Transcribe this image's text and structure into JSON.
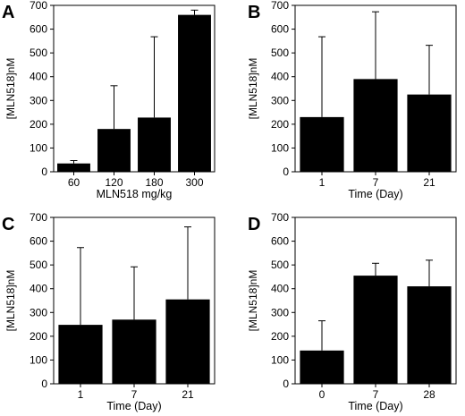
{
  "chart_data": [
    {
      "panel": "A",
      "type": "bar",
      "categories": [
        "60",
        "120",
        "180",
        "300"
      ],
      "values": [
        35,
        180,
        228,
        660
      ],
      "error_upper": [
        12,
        182,
        340,
        20
      ],
      "xlabel": "MLN518 mg/kg",
      "ylabel": "[MLN518]nM",
      "ylim": [
        0,
        700
      ],
      "yticks": [
        0,
        100,
        200,
        300,
        400,
        500,
        600,
        700
      ],
      "bar_color": "#000000"
    },
    {
      "panel": "B",
      "type": "bar",
      "categories": [
        "1",
        "7",
        "21"
      ],
      "values": [
        230,
        390,
        325
      ],
      "error_upper": [
        338,
        283,
        207
      ],
      "xlabel": "Time (Day)",
      "ylabel": "[MLN518]nM",
      "ylim": [
        0,
        700
      ],
      "yticks": [
        0,
        100,
        200,
        300,
        400,
        500,
        600,
        700
      ],
      "bar_color": "#000000"
    },
    {
      "panel": "C",
      "type": "bar",
      "categories": [
        "1",
        "7",
        "21"
      ],
      "values": [
        248,
        270,
        355
      ],
      "error_upper": [
        325,
        222,
        305
      ],
      "xlabel": "Time (Day)",
      "ylabel": "[MLN518]nM",
      "ylim": [
        0,
        700
      ],
      "yticks": [
        0,
        100,
        200,
        300,
        400,
        500,
        600,
        700
      ],
      "bar_color": "#000000"
    },
    {
      "panel": "D",
      "type": "bar",
      "categories": [
        "0",
        "7",
        "28"
      ],
      "values": [
        140,
        455,
        410
      ],
      "error_upper": [
        125,
        52,
        110
      ],
      "xlabel": "Time (Day)",
      "ylabel": "[MLN518]nM",
      "ylim": [
        0,
        700
      ],
      "yticks": [
        0,
        100,
        200,
        300,
        400,
        500,
        600,
        700
      ],
      "bar_color": "#000000"
    }
  ]
}
